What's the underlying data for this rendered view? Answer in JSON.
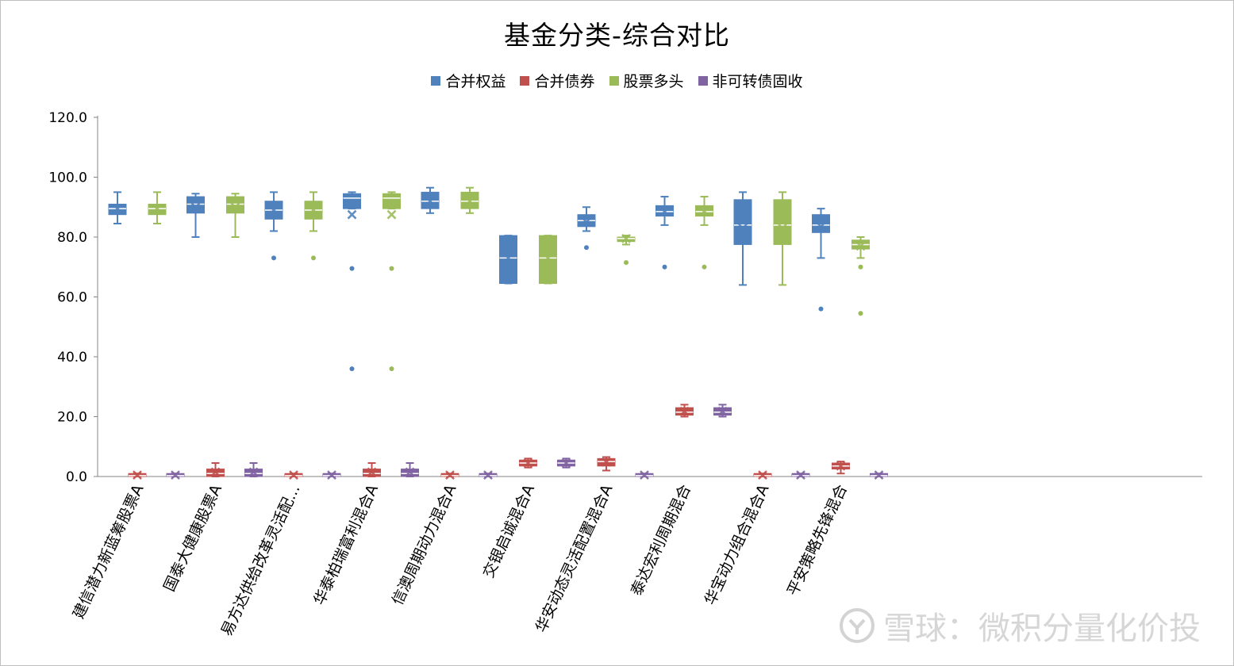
{
  "chart_data": {
    "type": "box",
    "title": "基金分类-综合对比",
    "ylim": [
      0,
      120
    ],
    "yticks": [
      "0.0",
      "20.0",
      "40.0",
      "60.0",
      "80.0",
      "100.0",
      "120.0"
    ],
    "legend_position": "top",
    "categories": [
      "建信潜力新蓝筹股票A",
      "国泰大健康股票A",
      "易方达供给改革灵活配...",
      "华泰柏瑞富利混合A",
      "信澳周期动力混合A",
      "交银启诚混合A",
      "华安动态灵活配置混合A",
      "泰达宏利周期混合",
      "华宝动力组合混合A",
      "平安策略先锋混合"
    ],
    "series": [
      {
        "name": "合并权益",
        "color": "#4f81bd",
        "boxes": [
          {
            "min": 84.5,
            "q1": 87.5,
            "median": 89.5,
            "q3": 91.0,
            "max": 95.0,
            "mean": 89.5,
            "outliers": []
          },
          {
            "min": 80.0,
            "q1": 88.0,
            "median": 91.0,
            "q3": 93.5,
            "max": 94.5,
            "mean": 90.0,
            "outliers": []
          },
          {
            "min": 82.0,
            "q1": 86.0,
            "median": 89.0,
            "q3": 92.0,
            "max": 95.0,
            "mean": 89.0,
            "outliers": [
              73.0
            ]
          },
          {
            "min": 89.5,
            "q1": 89.5,
            "median": 93.0,
            "q3": 94.5,
            "max": 95.0,
            "mean": 87.5,
            "outliers": [
              69.5,
              36.0
            ]
          },
          {
            "min": 88.0,
            "q1": 89.5,
            "median": 92.0,
            "q3": 95.0,
            "max": 96.5,
            "mean": 92.0,
            "outliers": []
          },
          {
            "min": 64.5,
            "q1": 64.5,
            "median": 73.0,
            "q3": 80.5,
            "max": 80.5,
            "mean": 73.0,
            "outliers": []
          },
          {
            "min": 82.0,
            "q1": 83.5,
            "median": 85.5,
            "q3": 87.5,
            "max": 90.0,
            "mean": 85.0,
            "outliers": [
              76.5
            ]
          },
          {
            "min": 84.0,
            "q1": 87.0,
            "median": 88.5,
            "q3": 90.5,
            "max": 93.5,
            "mean": 88.5,
            "outliers": [
              70.0
            ]
          },
          {
            "min": 64.0,
            "q1": 77.5,
            "median": 84.0,
            "q3": 92.5,
            "max": 95.0,
            "mean": 83.0,
            "outliers": []
          },
          {
            "min": 73.0,
            "q1": 81.5,
            "median": 84.0,
            "q3": 87.5,
            "max": 89.5,
            "mean": 83.5,
            "outliers": [
              56.0
            ]
          }
        ]
      },
      {
        "name": "合并债券",
        "color": "#c0504d",
        "boxes": [
          {
            "min": 0.0,
            "q1": 0.0,
            "median": 0.3,
            "q3": 1.0,
            "max": 1.0,
            "mean": 0.5,
            "outliers": []
          },
          {
            "min": 0.0,
            "q1": 0.0,
            "median": 1.0,
            "q3": 2.5,
            "max": 4.5,
            "mean": 1.5,
            "outliers": []
          },
          {
            "min": 0.0,
            "q1": 0.0,
            "median": 0.3,
            "q3": 1.0,
            "max": 1.0,
            "mean": 0.5,
            "outliers": []
          },
          {
            "min": 0.0,
            "q1": 0.0,
            "median": 1.0,
            "q3": 2.5,
            "max": 4.5,
            "mean": 1.5,
            "outliers": []
          },
          {
            "min": 0.0,
            "q1": 0.0,
            "median": 0.3,
            "q3": 1.0,
            "max": 1.0,
            "mean": 0.5,
            "outliers": []
          },
          {
            "min": 3.0,
            "q1": 3.5,
            "median": 4.5,
            "q3": 5.5,
            "max": 6.0,
            "mean": 4.5,
            "outliers": []
          },
          {
            "min": 2.0,
            "q1": 3.5,
            "median": 5.0,
            "q3": 6.0,
            "max": 6.5,
            "mean": 4.8,
            "outliers": []
          },
          {
            "min": 20.0,
            "q1": 20.5,
            "median": 21.5,
            "q3": 23.0,
            "max": 24.0,
            "mean": 21.8,
            "outliers": []
          },
          {
            "min": 0.0,
            "q1": 0.0,
            "median": 0.3,
            "q3": 1.0,
            "max": 1.0,
            "mean": 0.5,
            "outliers": []
          },
          {
            "min": 1.0,
            "q1": 2.5,
            "median": 3.5,
            "q3": 4.5,
            "max": 5.0,
            "mean": 3.5,
            "outliers": []
          }
        ]
      },
      {
        "name": "股票多头",
        "color": "#9bbb59",
        "boxes": [
          {
            "min": 84.5,
            "q1": 87.5,
            "median": 89.5,
            "q3": 91.0,
            "max": 95.0,
            "mean": 89.5,
            "outliers": []
          },
          {
            "min": 80.0,
            "q1": 88.0,
            "median": 91.0,
            "q3": 93.5,
            "max": 94.5,
            "mean": 90.0,
            "outliers": []
          },
          {
            "min": 82.0,
            "q1": 86.0,
            "median": 89.0,
            "q3": 92.0,
            "max": 95.0,
            "mean": 89.0,
            "outliers": [
              73.0
            ]
          },
          {
            "min": 89.5,
            "q1": 89.5,
            "median": 93.0,
            "q3": 94.5,
            "max": 95.0,
            "mean": 87.5,
            "outliers": [
              69.5,
              36.0
            ]
          },
          {
            "min": 88.0,
            "q1": 89.5,
            "median": 92.0,
            "q3": 95.0,
            "max": 96.5,
            "mean": 92.0,
            "outliers": []
          },
          {
            "min": 64.5,
            "q1": 64.5,
            "median": 73.0,
            "q3": 80.5,
            "max": 80.5,
            "mean": 73.0,
            "outliers": []
          },
          {
            "min": 77.5,
            "q1": 78.5,
            "median": 79.5,
            "q3": 80.0,
            "max": 80.5,
            "mean": 79.5,
            "outliers": [
              71.5
            ]
          },
          {
            "min": 84.0,
            "q1": 87.0,
            "median": 88.5,
            "q3": 90.5,
            "max": 93.5,
            "mean": 88.5,
            "outliers": [
              70.0
            ]
          },
          {
            "min": 64.0,
            "q1": 77.5,
            "median": 84.0,
            "q3": 92.5,
            "max": 95.0,
            "mean": 83.0,
            "outliers": []
          },
          {
            "min": 73.0,
            "q1": 76.0,
            "median": 77.5,
            "q3": 79.0,
            "max": 80.0,
            "mean": 77.0,
            "outliers": [
              70.0,
              54.5
            ]
          }
        ]
      },
      {
        "name": "非可转债固收",
        "color": "#8064a2",
        "boxes": [
          {
            "min": 0.0,
            "q1": 0.0,
            "median": 0.3,
            "q3": 1.0,
            "max": 1.0,
            "mean": 0.5,
            "outliers": []
          },
          {
            "min": 0.0,
            "q1": 0.0,
            "median": 1.0,
            "q3": 2.5,
            "max": 4.5,
            "mean": 1.5,
            "outliers": []
          },
          {
            "min": 0.0,
            "q1": 0.0,
            "median": 0.3,
            "q3": 1.0,
            "max": 1.0,
            "mean": 0.5,
            "outliers": []
          },
          {
            "min": 0.0,
            "q1": 0.0,
            "median": 1.0,
            "q3": 2.5,
            "max": 4.5,
            "mean": 1.5,
            "outliers": []
          },
          {
            "min": 0.0,
            "q1": 0.0,
            "median": 0.3,
            "q3": 1.0,
            "max": 1.0,
            "mean": 0.5,
            "outliers": []
          },
          {
            "min": 3.0,
            "q1": 3.5,
            "median": 4.5,
            "q3": 5.5,
            "max": 6.0,
            "mean": 4.5,
            "outliers": []
          },
          {
            "min": 0.0,
            "q1": 0.0,
            "median": 0.3,
            "q3": 1.0,
            "max": 1.0,
            "mean": 0.5,
            "outliers": []
          },
          {
            "min": 20.0,
            "q1": 20.5,
            "median": 21.5,
            "q3": 23.0,
            "max": 24.0,
            "mean": 21.8,
            "outliers": []
          },
          {
            "min": 0.0,
            "q1": 0.0,
            "median": 0.3,
            "q3": 1.0,
            "max": 1.0,
            "mean": 0.5,
            "outliers": []
          },
          {
            "min": 0.0,
            "q1": 0.0,
            "median": 0.3,
            "q3": 1.0,
            "max": 1.0,
            "mean": 0.5,
            "outliers": []
          }
        ]
      }
    ]
  },
  "watermark": {
    "text": "雪球：微积分量化价投"
  }
}
